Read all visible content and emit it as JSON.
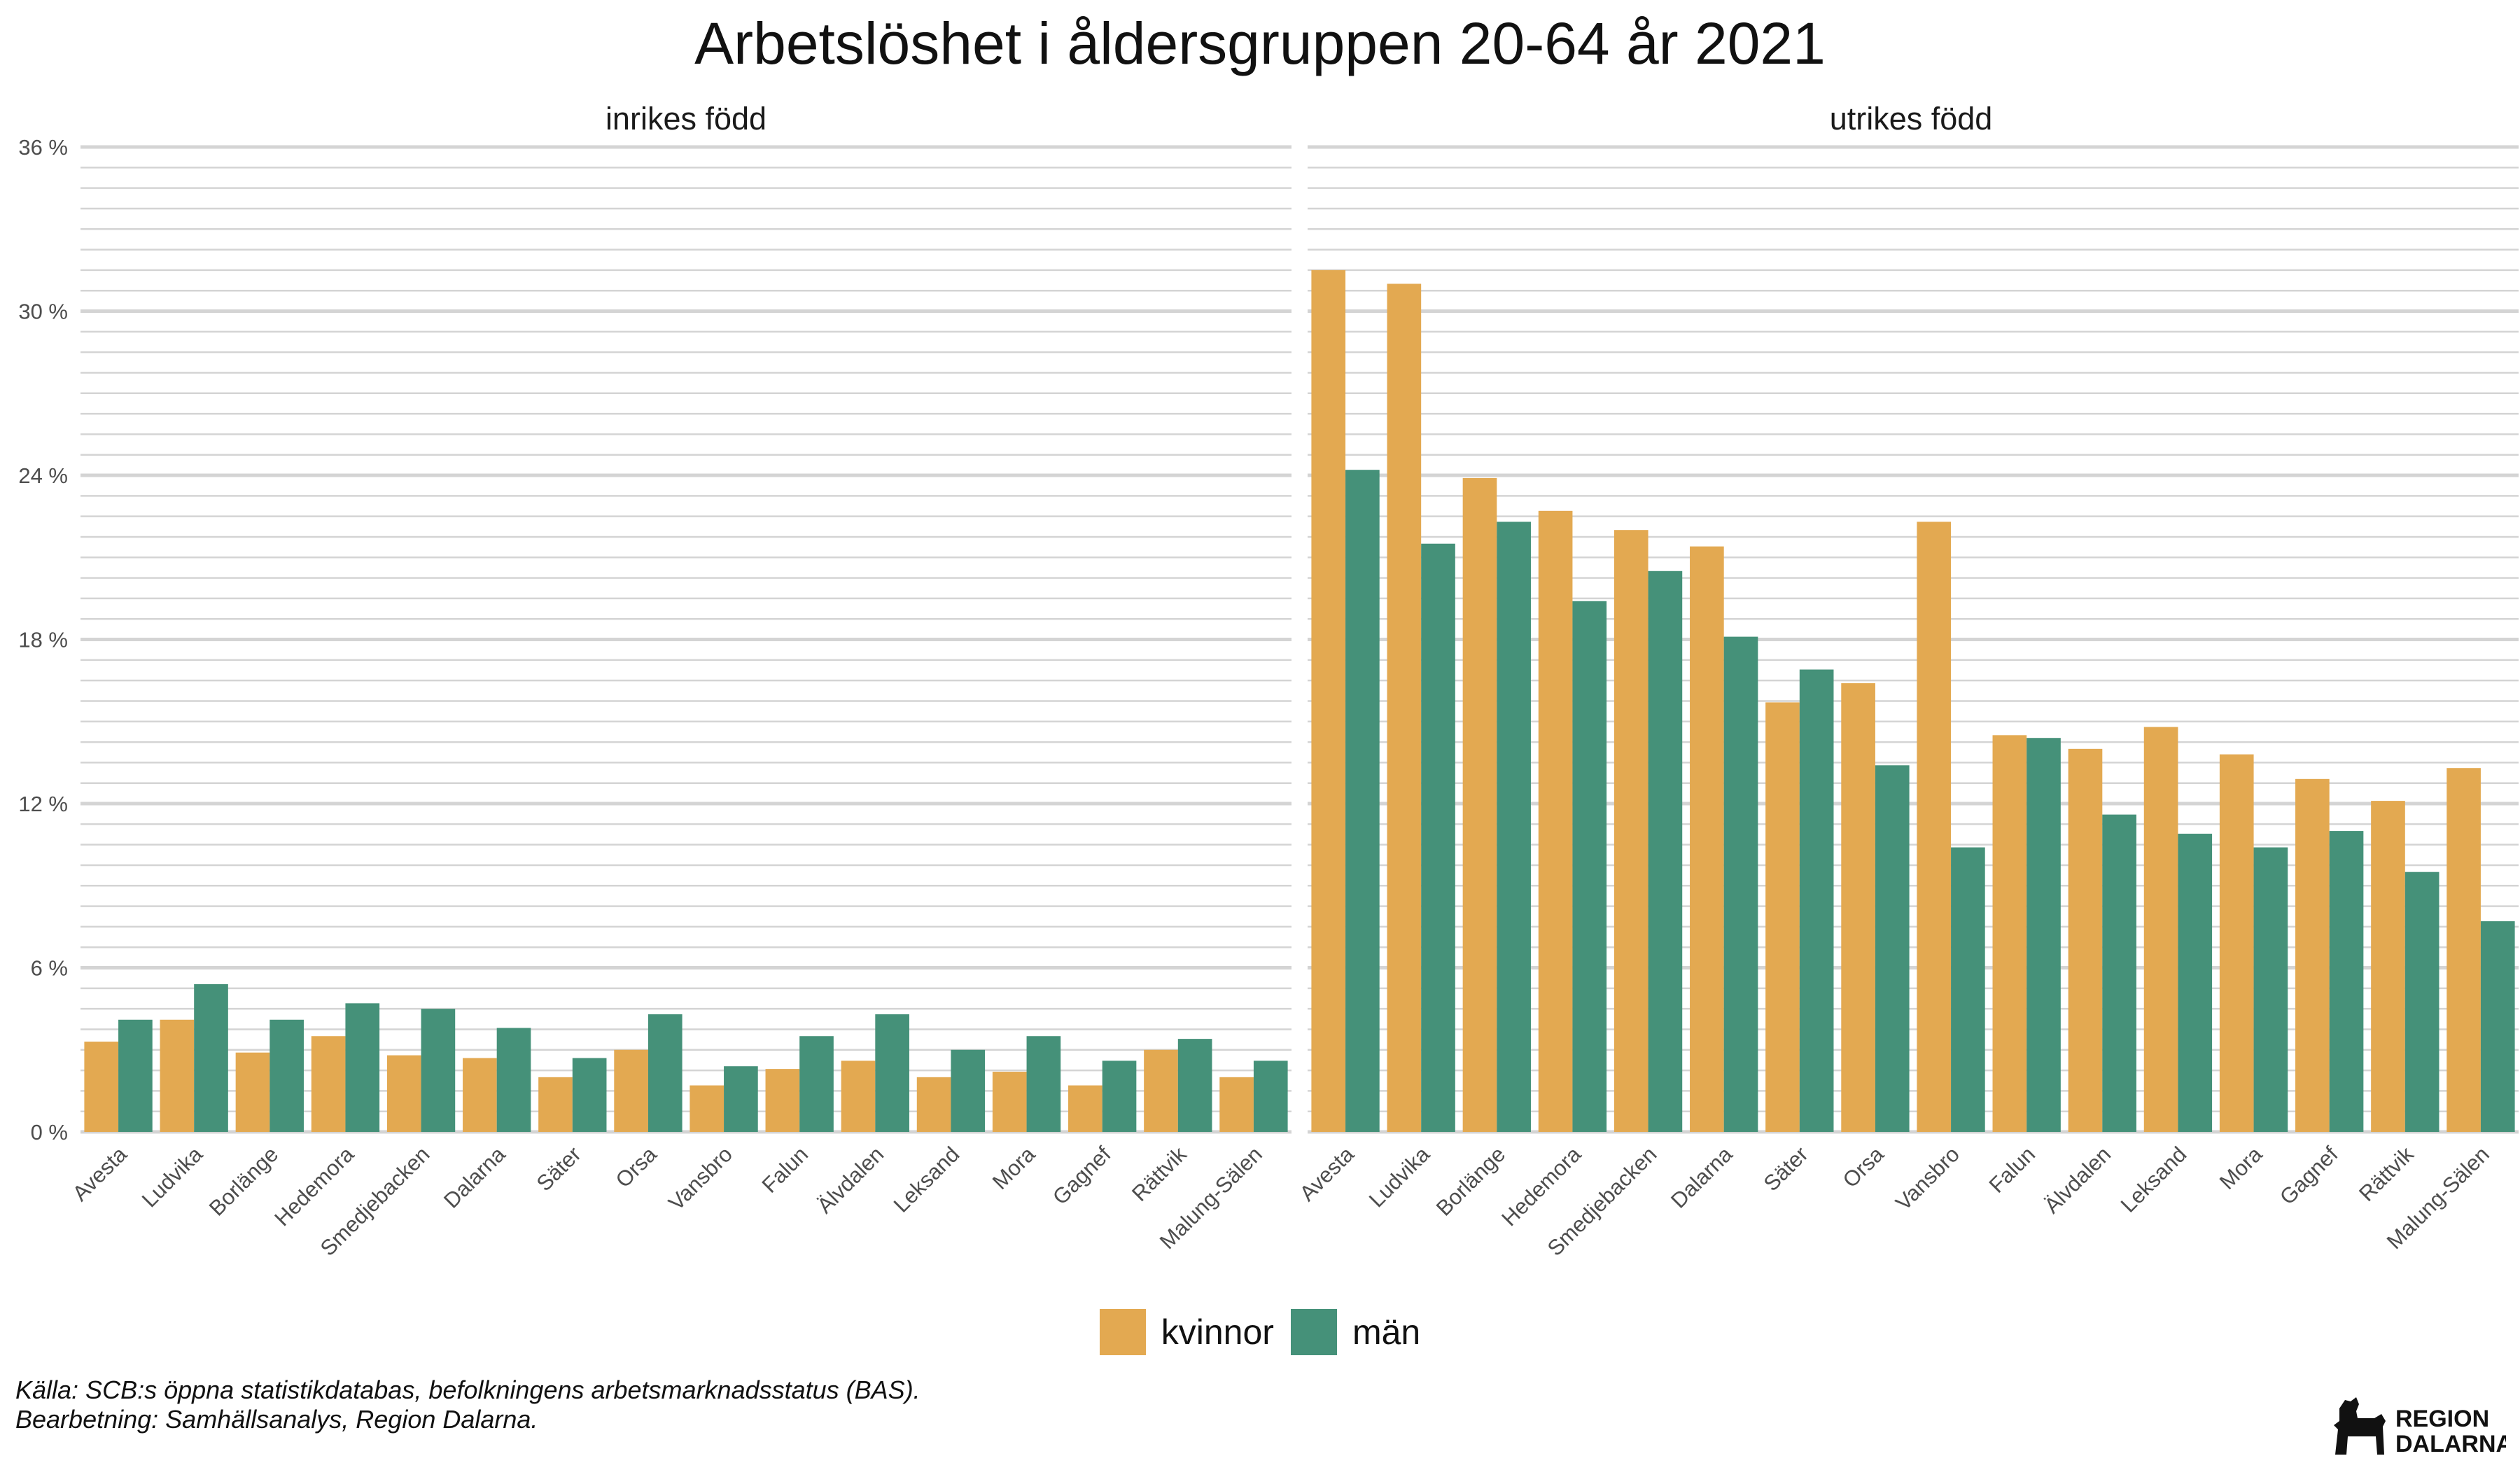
{
  "title": "Arbetslöshet i åldersgruppen 20-64 år 2021",
  "caption": {
    "line1": "Källa: SCB:s öppna statistikdatabas, befolkningens arbetsmarknadsstatus (BAS).",
    "line2": "Bearbetning: Samhällsanalys, Region Dalarna."
  },
  "logo": {
    "line1": "REGION",
    "line2": "DALARNA",
    "icon": "dala-horse-icon"
  },
  "colors": {
    "kvinnor": "#E3A951",
    "man": "#459179",
    "grid": "#d4d4d4",
    "text": "#4d4d4d"
  },
  "legend": [
    {
      "label": "kvinnor",
      "color": "#E3A951"
    },
    {
      "label": "män",
      "color": "#459179"
    }
  ],
  "chart_data": [
    {
      "type": "bar",
      "title": "inrikes född",
      "categories": [
        "Avesta",
        "Ludvika",
        "Borlänge",
        "Hedemora",
        "Smedjebacken",
        "Dalarna",
        "Säter",
        "Orsa",
        "Vansbro",
        "Falun",
        "Älvdalen",
        "Leksand",
        "Mora",
        "Gagnef",
        "Rättvik",
        "Malung-Sälen"
      ],
      "series": [
        {
          "name": "kvinnor",
          "values": [
            3.3,
            4.1,
            2.9,
            3.5,
            2.8,
            2.7,
            2.0,
            3.0,
            1.7,
            2.3,
            2.6,
            2.0,
            2.2,
            1.7,
            3.0,
            2.0
          ]
        },
        {
          "name": "män",
          "values": [
            4.1,
            5.4,
            4.1,
            4.7,
            4.5,
            3.8,
            2.7,
            4.3,
            2.4,
            3.5,
            4.3,
            3.0,
            3.5,
            2.6,
            3.4,
            2.6
          ]
        }
      ],
      "y_ticks": [
        "0 %",
        "6 %",
        "12 %",
        "18 %",
        "24 %",
        "30 %",
        "36 %"
      ],
      "ylim": [
        0,
        36
      ],
      "grid": true,
      "legend_position": "bottom"
    },
    {
      "type": "bar",
      "title": "utrikes född",
      "categories": [
        "Avesta",
        "Ludvika",
        "Borlänge",
        "Hedemora",
        "Smedjebacken",
        "Dalarna",
        "Säter",
        "Orsa",
        "Vansbro",
        "Falun",
        "Älvdalen",
        "Leksand",
        "Mora",
        "Gagnef",
        "Rättvik",
        "Malung-Sälen"
      ],
      "series": [
        {
          "name": "kvinnor",
          "values": [
            31.5,
            31.0,
            23.9,
            22.7,
            22.0,
            21.4,
            15.7,
            16.4,
            22.3,
            14.5,
            14.0,
            14.8,
            13.8,
            12.9,
            12.1,
            13.3
          ]
        },
        {
          "name": "män",
          "values": [
            24.2,
            21.5,
            22.3,
            19.4,
            20.5,
            18.1,
            16.9,
            13.4,
            10.4,
            14.4,
            11.6,
            10.9,
            10.4,
            11.0,
            9.5,
            7.7
          ]
        }
      ],
      "ylim": [
        0,
        36
      ],
      "grid": true,
      "legend_position": "bottom"
    }
  ]
}
